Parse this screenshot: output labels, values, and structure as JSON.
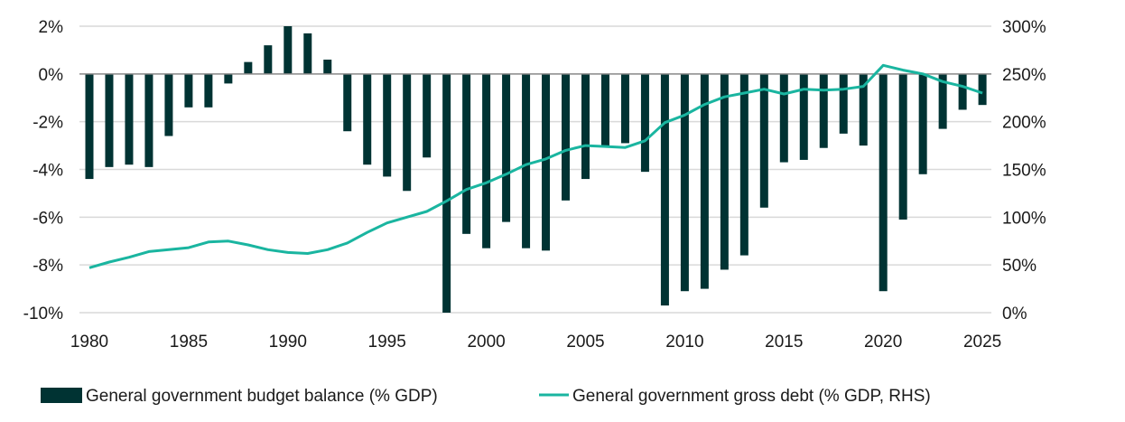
{
  "chart_data": {
    "type": "bar+line",
    "title": "",
    "xlabel": "",
    "ylabel": "",
    "x_ticks": [
      "1980",
      "1985",
      "1990",
      "1995",
      "2000",
      "2005",
      "2010",
      "2015",
      "2020",
      "2025"
    ],
    "y_left": {
      "range": [
        -10,
        2
      ],
      "ticks": [
        "2%",
        "0%",
        "-2%",
        "-4%",
        "-6%",
        "-8%",
        "-10%"
      ],
      "tick_values": [
        2,
        0,
        -2,
        -4,
        -6,
        -8,
        -10
      ]
    },
    "y_right": {
      "range": [
        0,
        300
      ],
      "ticks": [
        "300%",
        "250%",
        "200%",
        "150%",
        "100%",
        "50%",
        "0%"
      ],
      "tick_values": [
        300,
        250,
        200,
        150,
        100,
        50,
        0
      ]
    },
    "grid": true,
    "legend_placement": "bottom",
    "years": [
      1980,
      1981,
      1982,
      1983,
      1984,
      1985,
      1986,
      1987,
      1988,
      1989,
      1990,
      1991,
      1992,
      1993,
      1994,
      1995,
      1996,
      1997,
      1998,
      1999,
      2000,
      2001,
      2002,
      2003,
      2004,
      2005,
      2006,
      2007,
      2008,
      2009,
      2010,
      2011,
      2012,
      2013,
      2014,
      2015,
      2016,
      2017,
      2018,
      2019,
      2020,
      2021,
      2022,
      2023,
      2024,
      2025
    ],
    "series": [
      {
        "name": "General government budget balance (% GDP)",
        "type": "bar",
        "axis": "left",
        "color": "#003333",
        "values": [
          -4.4,
          -3.9,
          -3.8,
          -3.9,
          -2.6,
          -1.4,
          -1.4,
          -0.4,
          0.5,
          1.2,
          2.0,
          1.7,
          0.6,
          -2.4,
          -3.8,
          -4.3,
          -4.9,
          -3.5,
          -10.0,
          -6.7,
          -7.3,
          -6.2,
          -7.3,
          -7.4,
          -5.3,
          -4.4,
          -3.0,
          -2.9,
          -4.1,
          -9.7,
          -9.1,
          -9.0,
          -8.2,
          -7.6,
          -5.6,
          -3.7,
          -3.6,
          -3.1,
          -2.5,
          -3.0,
          -9.1,
          -6.1,
          -4.2,
          -2.3,
          -1.5,
          -1.3
        ]
      },
      {
        "name": "General government gross debt (% GDP, RHS)",
        "type": "line",
        "axis": "right",
        "color": "#1ab5a0",
        "values": [
          47,
          53,
          58,
          64,
          66,
          68,
          74,
          75,
          71,
          66,
          63,
          62,
          66,
          73,
          84,
          94,
          100,
          106,
          117,
          129,
          136,
          145,
          155,
          161,
          170,
          175,
          174,
          173,
          180,
          199,
          207,
          218,
          226,
          230,
          234,
          229,
          234,
          233,
          234,
          237,
          259,
          254,
          250,
          242,
          237,
          230
        ]
      }
    ]
  }
}
